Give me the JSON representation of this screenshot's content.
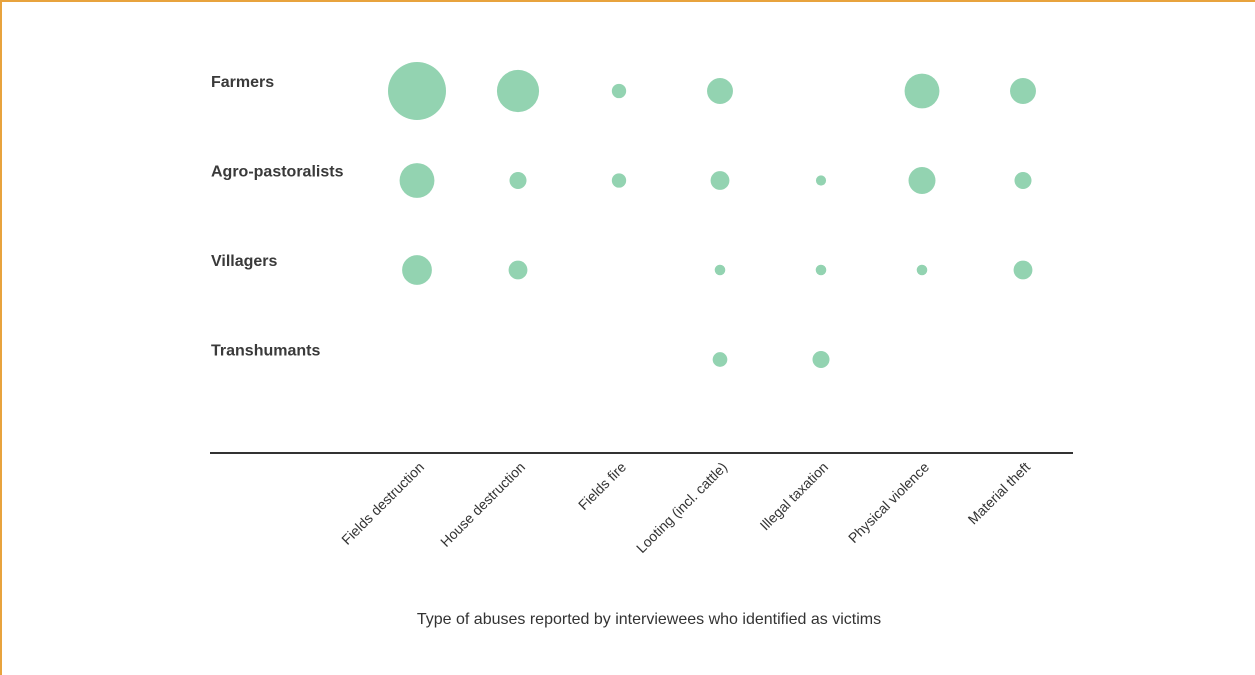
{
  "chart_data": {
    "type": "scatter",
    "title": "",
    "xlabel": "Type of abuses reported by interviewees who identified as victims",
    "ylabel": "",
    "categories": [
      "Fields destruction",
      "House destruction",
      "Fields fire",
      "Looting (incl. cattle)",
      "Illegal taxation",
      "Physical violence",
      "Material theft"
    ],
    "groups": [
      "Farmers",
      "Agro-pastoralists",
      "Villagers",
      "Transhumants"
    ],
    "size_encoding": "bubble area proportional to relative number of reports (no scale shown)",
    "values": [
      [
        36,
        19,
        2.2,
        7.2,
        0,
        13,
        7.2
      ],
      [
        13,
        3.1,
        2.2,
        3.8,
        1.1,
        7.8,
        3.1
      ],
      [
        9.5,
        3.8,
        0,
        1.2,
        1.2,
        1.2,
        3.8
      ],
      [
        0,
        0,
        0,
        2.3,
        3.1,
        0,
        0
      ]
    ],
    "color": "#93d3b1",
    "axis_line_color": "#333333",
    "frame_color": "#e8a33d",
    "grid": false,
    "legend": "none"
  }
}
